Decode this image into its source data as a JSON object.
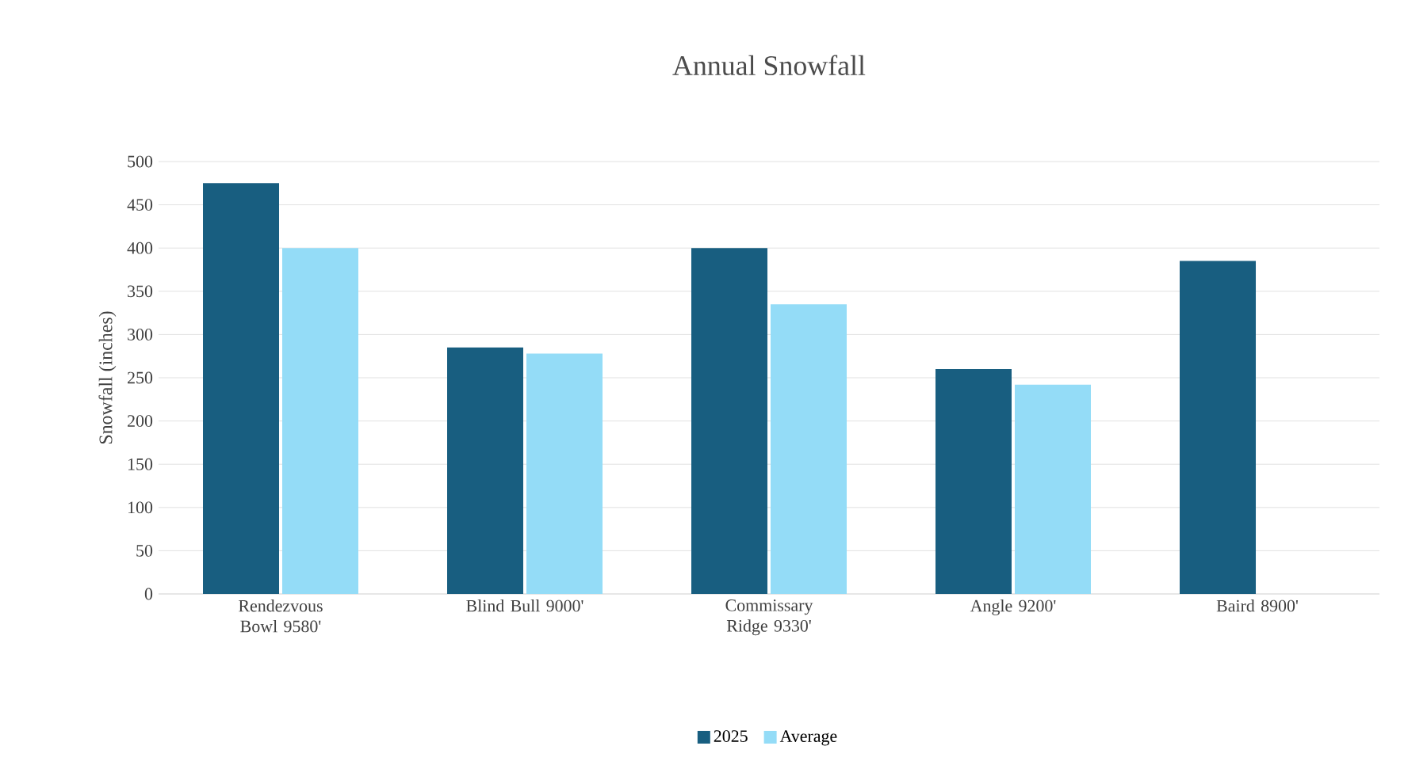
{
  "chart_data": {
    "type": "bar",
    "title": "Annual Snowfall",
    "ylabel": "Snowfall (inches)",
    "categories": [
      "Rendezvous Bowl 9580'",
      "Blind Bull 9000'",
      "Commissary Ridge 9330'",
      "Angle 9200'",
      "Baird 8900'"
    ],
    "series": [
      {
        "name": "2025",
        "color": "#185e80",
        "values": [
          475,
          285,
          400,
          260,
          385
        ]
      },
      {
        "name": "Average",
        "color": "#94dcf7",
        "values": [
          400,
          278,
          335,
          242,
          null
        ]
      }
    ],
    "ylim": [
      0,
      500
    ],
    "yticks": [
      0,
      50,
      100,
      150,
      200,
      250,
      300,
      350,
      400,
      450,
      500
    ],
    "grid": "y",
    "legend": "bottom"
  }
}
